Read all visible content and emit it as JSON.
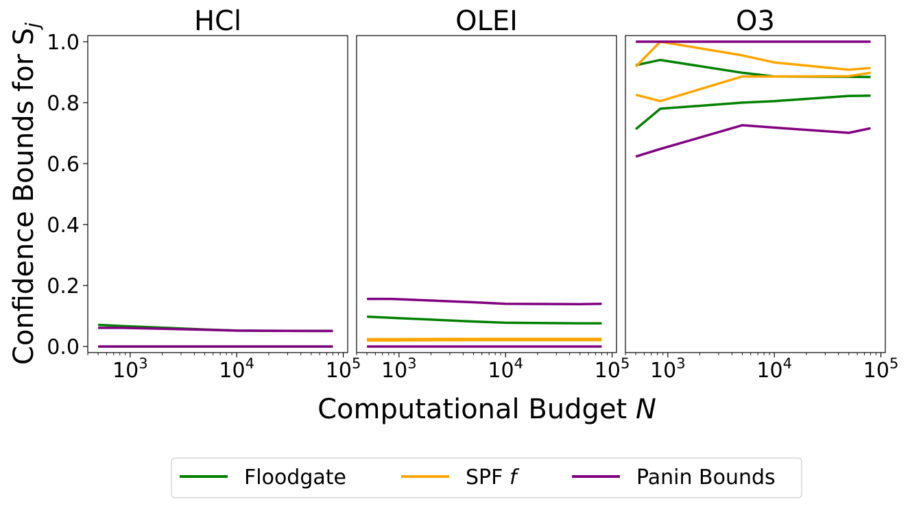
{
  "chart_data": {
    "type": "line",
    "ylabel": "Confidence Bounds for S",
    "ylabel_sub": "j",
    "xlabel": "Computational Budget",
    "xlabel_var": "N",
    "x_scale": "log",
    "xlim": [
      400,
      110000
    ],
    "ylim": [
      -0.02,
      1.02
    ],
    "yticks": [
      0.0,
      0.2,
      0.4,
      0.6,
      0.8,
      1.0
    ],
    "ytick_labels": [
      "0.0",
      "0.2",
      "0.4",
      "0.6",
      "0.8",
      "1.0"
    ],
    "xticks": [
      1000,
      10000,
      100000
    ],
    "xtick_bases": [
      "10",
      "10",
      "10"
    ],
    "xtick_exps": [
      "3",
      "4",
      "5"
    ],
    "grid": false,
    "legend_placement": "bottom-center",
    "colors": {
      "Floodgate": "#008000",
      "SPF f": "#FFA500",
      "Panin Bounds": "#800080"
    },
    "legend": [
      {
        "name": "Floodgate",
        "label": "Floodgate",
        "label_var": ""
      },
      {
        "name": "SPF f",
        "label": "SPF ",
        "label_var": "f"
      },
      {
        "name": "Panin Bounds",
        "label": "Panin Bounds",
        "label_var": ""
      }
    ],
    "panels": [
      {
        "title": "HCl",
        "series": [
          {
            "name": "Floodgate",
            "bound": "lower",
            "x": [
              500,
              850,
              5000,
              10000,
              50000,
              80000
            ],
            "y": [
              0.0,
              0.0,
              0.0,
              0.0,
              0.0,
              0.0
            ]
          },
          {
            "name": "Floodgate",
            "bound": "upper",
            "x": [
              500,
              850,
              5000,
              10000,
              50000,
              80000
            ],
            "y": [
              0.071,
              0.067,
              0.056,
              0.052,
              0.051,
              0.051
            ]
          },
          {
            "name": "Panin Bounds",
            "bound": "lower",
            "x": [
              500,
              850,
              5000,
              10000,
              50000,
              80000
            ],
            "y": [
              0.0,
              0.0,
              0.0,
              0.0,
              0.0,
              0.0
            ]
          },
          {
            "name": "Panin Bounds",
            "bound": "upper",
            "x": [
              500,
              850,
              5000,
              10000,
              50000,
              80000
            ],
            "y": [
              0.061,
              0.061,
              0.055,
              0.052,
              0.051,
              0.051
            ]
          }
        ]
      },
      {
        "title": "OLEI",
        "series": [
          {
            "name": "Floodgate",
            "bound": "lower",
            "x": [
              500,
              850,
              5000,
              10000,
              50000,
              80000
            ],
            "y": [
              0.023,
              0.023,
              0.024,
              0.024,
              0.024,
              0.024
            ]
          },
          {
            "name": "Floodgate",
            "bound": "upper",
            "x": [
              500,
              850,
              5000,
              10000,
              50000,
              80000
            ],
            "y": [
              0.098,
              0.094,
              0.082,
              0.078,
              0.076,
              0.076
            ]
          },
          {
            "name": "SPF f",
            "bound": "lower",
            "x": [
              500,
              850,
              5000,
              10000,
              50000,
              80000
            ],
            "y": [
              0.02,
              0.02,
              0.021,
              0.021,
              0.021,
              0.021
            ]
          },
          {
            "name": "SPF f",
            "bound": "upper",
            "x": [
              500,
              850,
              5000,
              10000,
              50000,
              80000
            ],
            "y": [
              0.024,
              0.024,
              0.025,
              0.025,
              0.025,
              0.025
            ]
          },
          {
            "name": "Panin Bounds",
            "bound": "lower",
            "x": [
              500,
              850,
              5000,
              10000,
              50000,
              80000
            ],
            "y": [
              0.0,
              0.0,
              0.0,
              0.0,
              0.0,
              0.0
            ]
          },
          {
            "name": "Panin Bounds",
            "bound": "upper",
            "x": [
              500,
              850,
              5000,
              10000,
              50000,
              80000
            ],
            "y": [
              0.156,
              0.156,
              0.145,
              0.14,
              0.139,
              0.14
            ]
          }
        ]
      },
      {
        "title": "O3",
        "series": [
          {
            "name": "Floodgate",
            "bound": "lower",
            "x": [
              500,
              850,
              5000,
              10000,
              50000,
              80000
            ],
            "y": [
              0.713,
              0.78,
              0.8,
              0.805,
              0.822,
              0.823
            ]
          },
          {
            "name": "Floodgate",
            "bound": "upper",
            "x": [
              500,
              850,
              5000,
              10000,
              50000,
              80000
            ],
            "y": [
              0.923,
              0.94,
              0.898,
              0.886,
              0.885,
              0.884
            ]
          },
          {
            "name": "SPF f",
            "bound": "lower",
            "x": [
              500,
              850,
              5000,
              10000,
              50000,
              80000
            ],
            "y": [
              0.826,
              0.805,
              0.886,
              0.886,
              0.887,
              0.898
            ]
          },
          {
            "name": "SPF f",
            "bound": "upper",
            "x": [
              500,
              850,
              5000,
              10000,
              50000,
              80000
            ],
            "y": [
              0.918,
              1.0,
              0.955,
              0.932,
              0.908,
              0.914
            ]
          },
          {
            "name": "Panin Bounds",
            "bound": "lower",
            "x": [
              500,
              850,
              5000,
              10000,
              50000,
              80000
            ],
            "y": [
              0.623,
              0.648,
              0.726,
              0.718,
              0.701,
              0.716
            ]
          },
          {
            "name": "Panin Bounds",
            "bound": "upper",
            "x": [
              500,
              850,
              5000,
              10000,
              50000,
              80000
            ],
            "y": [
              1.0,
              1.0,
              1.0,
              1.0,
              1.0,
              1.0
            ]
          }
        ]
      }
    ]
  }
}
